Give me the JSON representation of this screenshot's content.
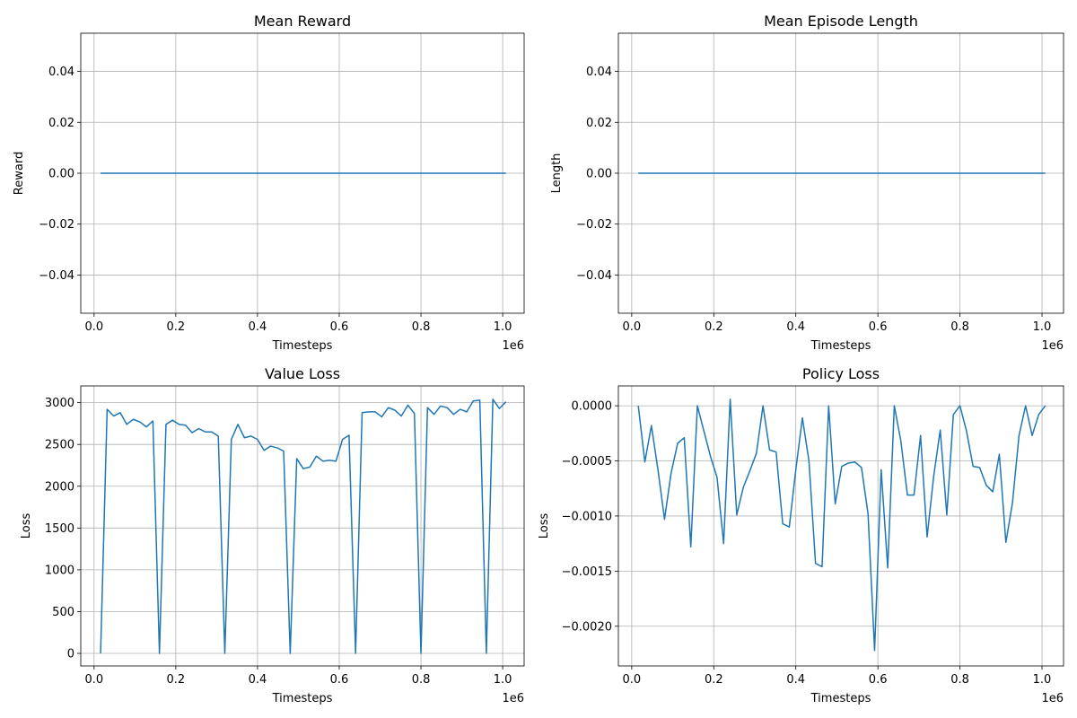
{
  "chart_data": [
    {
      "type": "line",
      "title": "Mean Reward",
      "xlabel": "Timesteps",
      "ylabel": "Reward",
      "x_offset_label": "1e6",
      "xlim": [
        -0.0325,
        1.0525
      ],
      "ylim": [
        -0.055,
        0.055
      ],
      "xticks": [
        0.0,
        0.2,
        0.4,
        0.6,
        0.8,
        1.0
      ],
      "xtick_labels": [
        "0.0",
        "0.2",
        "0.4",
        "0.6",
        "0.8",
        "1.0"
      ],
      "yticks": [
        -0.04,
        -0.02,
        0.0,
        0.02,
        0.04
      ],
      "ytick_labels": [
        "−0.04",
        "−0.02",
        "0.00",
        "0.02",
        "0.04"
      ],
      "grid": true,
      "series": [
        {
          "name": "Mean Reward",
          "x": [
            0.016,
            1.008
          ],
          "y": [
            0.0,
            0.0
          ]
        }
      ]
    },
    {
      "type": "line",
      "title": "Mean Episode Length",
      "xlabel": "Timesteps",
      "ylabel": "Length",
      "x_offset_label": "1e6",
      "xlim": [
        -0.0325,
        1.0525
      ],
      "ylim": [
        -0.055,
        0.055
      ],
      "xticks": [
        0.0,
        0.2,
        0.4,
        0.6,
        0.8,
        1.0
      ],
      "xtick_labels": [
        "0.0",
        "0.2",
        "0.4",
        "0.6",
        "0.8",
        "1.0"
      ],
      "yticks": [
        -0.04,
        -0.02,
        0.0,
        0.02,
        0.04
      ],
      "ytick_labels": [
        "−0.04",
        "−0.02",
        "0.00",
        "0.02",
        "0.04"
      ],
      "grid": true,
      "series": [
        {
          "name": "Mean Episode Length",
          "x": [
            0.016,
            1.008
          ],
          "y": [
            0.0,
            0.0
          ]
        }
      ]
    },
    {
      "type": "line",
      "title": "Value Loss",
      "xlabel": "Timesteps",
      "ylabel": "Loss",
      "x_offset_label": "1e6",
      "xlim": [
        -0.0325,
        1.0525
      ],
      "ylim": [
        -150,
        3200
      ],
      "xticks": [
        0.0,
        0.2,
        0.4,
        0.6,
        0.8,
        1.0
      ],
      "xtick_labels": [
        "0.0",
        "0.2",
        "0.4",
        "0.6",
        "0.8",
        "1.0"
      ],
      "yticks": [
        0,
        500,
        1000,
        1500,
        2000,
        2500,
        3000
      ],
      "ytick_labels": [
        "0",
        "500",
        "1000",
        "1500",
        "2000",
        "2500",
        "3000"
      ],
      "grid": true,
      "series": [
        {
          "name": "Value Loss",
          "x": [
            0.016,
            0.032,
            0.048,
            0.064,
            0.08,
            0.096,
            0.112,
            0.128,
            0.144,
            0.16,
            0.176,
            0.192,
            0.208,
            0.224,
            0.24,
            0.256,
            0.272,
            0.288,
            0.304,
            0.32,
            0.336,
            0.352,
            0.368,
            0.384,
            0.4,
            0.416,
            0.432,
            0.448,
            0.464,
            0.48,
            0.496,
            0.512,
            0.528,
            0.544,
            0.56,
            0.576,
            0.592,
            0.608,
            0.624,
            0.64,
            0.656,
            0.672,
            0.688,
            0.704,
            0.72,
            0.736,
            0.752,
            0.768,
            0.784,
            0.8,
            0.816,
            0.832,
            0.848,
            0.864,
            0.88,
            0.896,
            0.912,
            0.928,
            0.944,
            0.96,
            0.976,
            0.992,
            1.008
          ],
          "y": [
            0,
            2920,
            2840,
            2880,
            2740,
            2800,
            2770,
            2710,
            2780,
            0,
            2740,
            2790,
            2740,
            2730,
            2640,
            2690,
            2650,
            2650,
            2600,
            0,
            2560,
            2740,
            2580,
            2600,
            2560,
            2430,
            2480,
            2460,
            2420,
            0,
            2330,
            2210,
            2230,
            2360,
            2300,
            2310,
            2300,
            2560,
            2610,
            0,
            2880,
            2890,
            2890,
            2830,
            2940,
            2910,
            2840,
            2970,
            2870,
            0,
            2940,
            2860,
            2960,
            2940,
            2860,
            2920,
            2890,
            3020,
            3030,
            0,
            3040,
            2930,
            3010
          ]
        }
      ]
    },
    {
      "type": "line",
      "title": "Policy Loss",
      "xlabel": "Timesteps",
      "ylabel": "Loss",
      "x_offset_label": "1e6",
      "xlim": [
        -0.0325,
        1.0525
      ],
      "ylim": [
        -0.00236,
        0.00018
      ],
      "xticks": [
        0.0,
        0.2,
        0.4,
        0.6,
        0.8,
        1.0
      ],
      "xtick_labels": [
        "0.0",
        "0.2",
        "0.4",
        "0.6",
        "0.8",
        "1.0"
      ],
      "yticks": [
        -0.002,
        -0.0015,
        -0.001,
        -0.0005,
        0.0
      ],
      "ytick_labels": [
        "−0.0020",
        "−0.0015",
        "−0.0010",
        "−0.0005",
        "0.0000"
      ],
      "grid": true,
      "series": [
        {
          "name": "Policy Loss",
          "x": [
            0.016,
            0.032,
            0.048,
            0.064,
            0.08,
            0.096,
            0.112,
            0.128,
            0.144,
            0.16,
            0.176,
            0.192,
            0.208,
            0.224,
            0.24,
            0.256,
            0.272,
            0.288,
            0.304,
            0.32,
            0.336,
            0.352,
            0.368,
            0.384,
            0.4,
            0.416,
            0.432,
            0.448,
            0.464,
            0.48,
            0.496,
            0.512,
            0.528,
            0.544,
            0.56,
            0.576,
            0.592,
            0.608,
            0.624,
            0.64,
            0.656,
            0.672,
            0.688,
            0.704,
            0.72,
            0.736,
            0.752,
            0.768,
            0.784,
            0.8,
            0.816,
            0.832,
            0.848,
            0.864,
            0.88,
            0.896,
            0.912,
            0.928,
            0.944,
            0.96,
            0.976,
            0.992,
            1.008
          ],
          "y": [
            0.0,
            -0.00051,
            -0.00018,
            -0.00058,
            -0.00103,
            -0.00061,
            -0.00034,
            -0.00029,
            -0.00128,
            0.0,
            -0.00023,
            -0.00046,
            -0.00065,
            -0.00125,
            6e-05,
            -0.00099,
            -0.00074,
            -0.00059,
            -0.00043,
            0.0,
            -0.0004,
            -0.00042,
            -0.00107,
            -0.0011,
            -0.00058,
            -0.00011,
            -0.0005,
            -0.00143,
            -0.00146,
            0.0,
            -0.00089,
            -0.00055,
            -0.00052,
            -0.00051,
            -0.00056,
            -0.00098,
            -0.00222,
            -0.00058,
            -0.00147,
            0.0,
            -0.00032,
            -0.00081,
            -0.00081,
            -0.00027,
            -0.00119,
            -0.00064,
            -0.00022,
            -0.00099,
            -8e-05,
            0.0,
            -0.00023,
            -0.00055,
            -0.00056,
            -0.00072,
            -0.00078,
            -0.00044,
            -0.00124,
            -0.00088,
            -0.00027,
            0.0,
            -0.00027,
            -8e-05,
            0.0
          ]
        }
      ]
    }
  ]
}
